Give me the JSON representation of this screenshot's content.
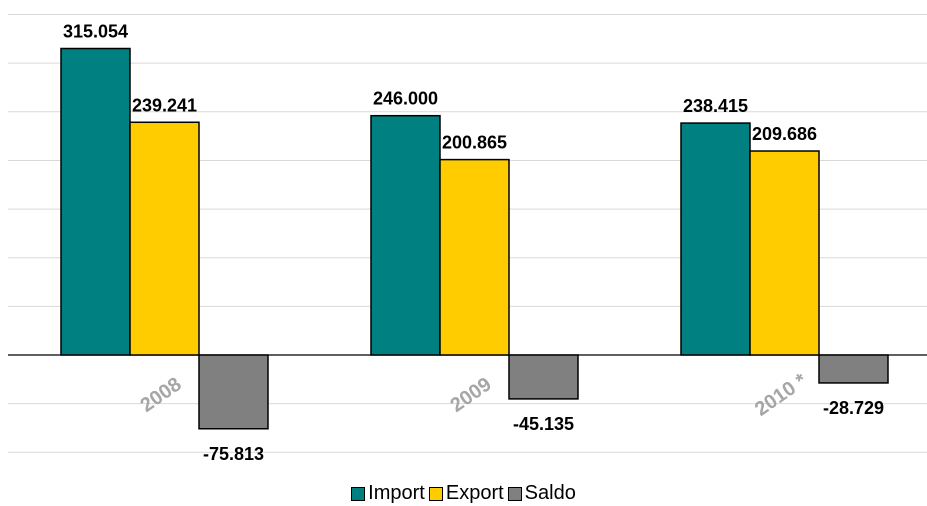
{
  "chart_data": {
    "type": "bar",
    "categories": [
      "2008",
      "2009",
      "2010 *"
    ],
    "series": [
      {
        "name": "Import",
        "values": [
          315.054,
          246.0,
          238.415
        ],
        "labels": [
          "315.054",
          "246.000",
          "238.415"
        ],
        "color": "#008080"
      },
      {
        "name": "Export",
        "values": [
          239.241,
          200.865,
          209.686
        ],
        "labels": [
          "239.241",
          "200.865",
          "209.686"
        ],
        "color": "#FFCC00"
      },
      {
        "name": "Saldo",
        "values": [
          -75.813,
          -45.135,
          -28.729
        ],
        "labels": [
          "-75.813",
          "-45.135",
          "-28.729"
        ],
        "color": "#808080"
      }
    ],
    "ylim": [
      -100,
      350
    ],
    "grid": true,
    "legend_position": "bottom"
  }
}
